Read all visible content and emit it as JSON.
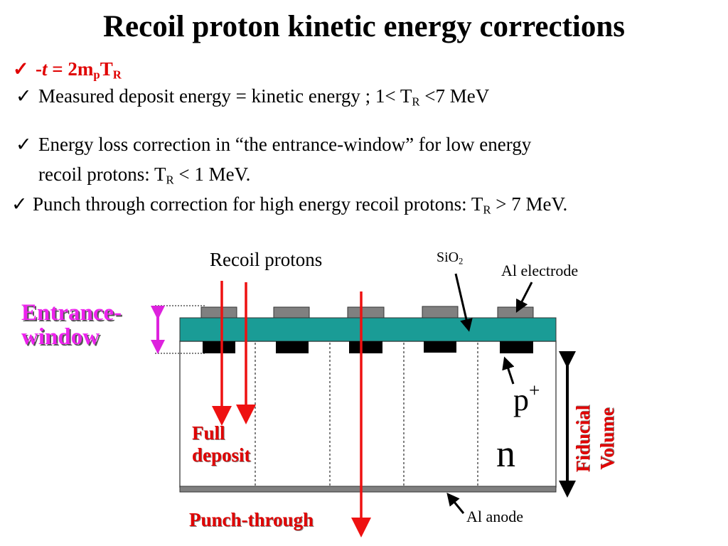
{
  "title": "Recoil proton kinetic energy corrections",
  "bullets": {
    "check_mark": "✓",
    "relation": {
      "prefix": "-",
      "t": "t",
      "mid": " = 2m",
      "sub_p": "p",
      "T": "T",
      "sub_R": "R"
    },
    "measured": {
      "pre": "Measured deposit energy = kinetic energy ; 1< T",
      "sub": "R",
      "post": " <7 MeV"
    },
    "energy_loss": {
      "line1": "Energy loss correction in “the entrance-window” for low energy",
      "pre": "recoil protons:  T",
      "sub": "R",
      "post": " < 1 MeV."
    },
    "punch": {
      "pre": "Punch through correction for high energy recoil protons: T",
      "sub": "R",
      "post": " > 7 MeV."
    }
  },
  "diagram": {
    "recoil_protons": "Recoil protons",
    "sio2": {
      "base": "SiO",
      "sub": "2"
    },
    "al_electrode": "Al electrode",
    "entrance_window": {
      "line1": "Entrance-",
      "line2": "window"
    },
    "p_plus": {
      "base": "p",
      "sup": "+"
    },
    "n": "n",
    "fiducial_volume": {
      "line1": "Fiducial",
      "line2": "Volume"
    },
    "full_deposit": {
      "line1": "Full",
      "line2": "deposit"
    },
    "punch_through": "Punch-through",
    "al_anode": "Al anode",
    "colors": {
      "sio2_layer": "#1a9c96",
      "electrode": "#808080",
      "p_plus_implant": "#000000",
      "arrow_red": "#ee1111",
      "arrow_magenta": "#dd22dd"
    }
  }
}
